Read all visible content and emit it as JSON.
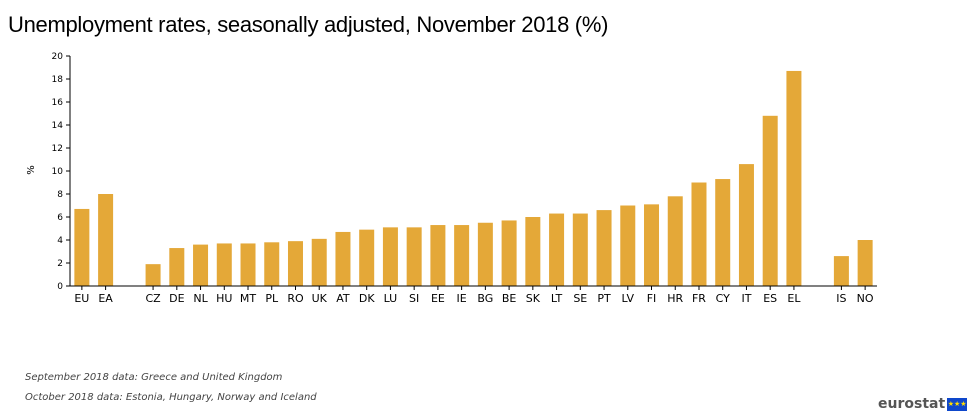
{
  "title": "Unemployment rates, seasonally adjusted, November 2018 (%)",
  "notes": [
    "September 2018 data: Greece and United Kingdom",
    "October 2018 data: Estonia, Hungary, Norway and Iceland"
  ],
  "logo": {
    "text": "eurostat",
    "flag_icon": "eu-flag-icon"
  },
  "colors": {
    "bar": "#e4a838",
    "axis": "#000000"
  },
  "chart_data": {
    "type": "bar",
    "title": "Unemployment rates, seasonally adjusted, November 2018 (%)",
    "xlabel": "",
    "ylabel": "%",
    "ylim": [
      0,
      20
    ],
    "yticks": [
      0,
      2,
      4,
      6,
      8,
      10,
      12,
      14,
      16,
      18,
      20
    ],
    "grid": false,
    "categories": [
      "EU",
      "EA",
      "",
      "CZ",
      "DE",
      "NL",
      "HU",
      "MT",
      "PL",
      "RO",
      "UK",
      "AT",
      "DK",
      "LU",
      "SI",
      "EE",
      "IE",
      "BG",
      "BE",
      "SK",
      "LT",
      "SE",
      "PT",
      "LV",
      "FI",
      "HR",
      "FR",
      "CY",
      "IT",
      "ES",
      "EL",
      "",
      "IS",
      "NO"
    ],
    "values": [
      6.7,
      8.0,
      null,
      1.9,
      3.3,
      3.6,
      3.7,
      3.7,
      3.8,
      3.9,
      4.1,
      4.7,
      4.9,
      5.1,
      5.1,
      5.3,
      5.3,
      5.5,
      5.7,
      6.0,
      6.3,
      6.3,
      6.6,
      7.0,
      7.1,
      7.8,
      9.0,
      9.3,
      10.6,
      14.8,
      18.7,
      null,
      2.6,
      4.0
    ]
  }
}
